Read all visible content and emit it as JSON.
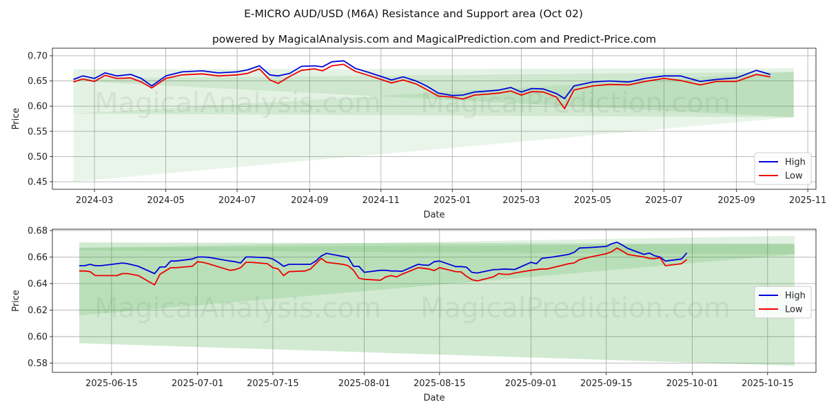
{
  "page": {
    "title": "E-MICRO AUD/USD (M6A) Resistance and Support area (Oct 02)",
    "subtitle": "powered by MagicalAnalysis.com and MagicalPrediction.com and Predict-Price.com",
    "watermarks": [
      "MagicalAnalysis.com",
      "MagicalPrediction.com"
    ]
  },
  "colors": {
    "high": "#0000dd",
    "low": "#ee0000",
    "band": "#2e9e2e"
  },
  "chart_data": [
    {
      "type": "line",
      "title": "",
      "xlabel": "Date",
      "ylabel": "Price",
      "legend": {
        "placement": "lower-right",
        "labels": [
          "High",
          "Low"
        ]
      },
      "grid": true,
      "x_domain": [
        "2024-01-25",
        "2025-11-08"
      ],
      "ylim": [
        0.435,
        0.715
      ],
      "xticks": [
        "2024-03-01",
        "2024-05-01",
        "2024-07-01",
        "2024-09-01",
        "2024-11-01",
        "2025-01-01",
        "2025-03-01",
        "2025-05-01",
        "2025-07-01",
        "2025-09-01",
        "2025-11-01"
      ],
      "xtick_labels": [
        "2024-03",
        "2024-05",
        "2024-07",
        "2024-09",
        "2024-11",
        "2025-01",
        "2025-03",
        "2025-05",
        "2025-07",
        "2025-09",
        "2025-11"
      ],
      "yticks": [
        0.45,
        0.5,
        0.55,
        0.6,
        0.65,
        0.7
      ],
      "ytick_labels": [
        "0.45",
        "0.50",
        "0.55",
        "0.60",
        "0.65",
        "0.70"
      ],
      "bands": [
        {
          "x": [
            "2024-02-12",
            "2025-10-20"
          ],
          "upper": [
            0.673,
            0.675
          ],
          "lower": [
            0.585,
            0.578
          ],
          "opacity": 0.13
        },
        {
          "x": [
            "2024-02-12",
            "2025-10-20"
          ],
          "upper": [
            0.585,
            0.668
          ],
          "lower": [
            0.45,
            0.578
          ],
          "opacity": 0.1
        },
        {
          "x": [
            "2024-02-12",
            "2025-10-20"
          ],
          "upper": [
            0.655,
            0.668
          ],
          "lower": [
            0.65,
            0.578
          ],
          "opacity": 0.12
        }
      ],
      "series": [
        {
          "name": "High",
          "dates": [
            "2024-02-12",
            "2024-02-20",
            "2024-03-01",
            "2024-03-10",
            "2024-03-20",
            "2024-04-01",
            "2024-04-10",
            "2024-04-19",
            "2024-05-01",
            "2024-05-15",
            "2024-06-01",
            "2024-06-15",
            "2024-07-01",
            "2024-07-10",
            "2024-07-20",
            "2024-07-29",
            "2024-08-05",
            "2024-08-15",
            "2024-08-25",
            "2024-09-05",
            "2024-09-12",
            "2024-09-20",
            "2024-09-30",
            "2024-10-10",
            "2024-10-20",
            "2024-11-01",
            "2024-11-10",
            "2024-11-20",
            "2024-12-01",
            "2024-12-10",
            "2024-12-20",
            "2025-01-01",
            "2025-01-10",
            "2025-01-20",
            "2025-02-01",
            "2025-02-10",
            "2025-02-20",
            "2025-03-01",
            "2025-03-10",
            "2025-03-20",
            "2025-03-31",
            "2025-04-07",
            "2025-04-15",
            "2025-05-01",
            "2025-05-15",
            "2025-06-01",
            "2025-06-15",
            "2025-07-01",
            "2025-07-15",
            "2025-08-01",
            "2025-08-15",
            "2025-09-01",
            "2025-09-18",
            "2025-09-30"
          ],
          "values": [
            0.653,
            0.66,
            0.655,
            0.666,
            0.66,
            0.663,
            0.655,
            0.64,
            0.66,
            0.668,
            0.67,
            0.666,
            0.668,
            0.672,
            0.68,
            0.662,
            0.66,
            0.665,
            0.679,
            0.68,
            0.678,
            0.688,
            0.69,
            0.675,
            0.668,
            0.659,
            0.652,
            0.658,
            0.65,
            0.64,
            0.626,
            0.621,
            0.622,
            0.628,
            0.63,
            0.632,
            0.637,
            0.628,
            0.635,
            0.634,
            0.625,
            0.615,
            0.64,
            0.648,
            0.65,
            0.648,
            0.655,
            0.66,
            0.66,
            0.649,
            0.653,
            0.656,
            0.671,
            0.663
          ]
        },
        {
          "name": "Low",
          "dates": [
            "2024-02-12",
            "2024-02-20",
            "2024-03-01",
            "2024-03-10",
            "2024-03-20",
            "2024-04-01",
            "2024-04-10",
            "2024-04-19",
            "2024-05-01",
            "2024-05-15",
            "2024-06-01",
            "2024-06-15",
            "2024-07-01",
            "2024-07-10",
            "2024-07-20",
            "2024-07-29",
            "2024-08-05",
            "2024-08-15",
            "2024-08-25",
            "2024-09-05",
            "2024-09-12",
            "2024-09-20",
            "2024-09-30",
            "2024-10-10",
            "2024-10-20",
            "2024-11-01",
            "2024-11-10",
            "2024-11-20",
            "2024-12-01",
            "2024-12-10",
            "2024-12-20",
            "2025-01-01",
            "2025-01-10",
            "2025-01-20",
            "2025-02-01",
            "2025-02-10",
            "2025-02-20",
            "2025-03-01",
            "2025-03-10",
            "2025-03-20",
            "2025-03-31",
            "2025-04-07",
            "2025-04-15",
            "2025-05-01",
            "2025-05-15",
            "2025-06-01",
            "2025-06-15",
            "2025-07-01",
            "2025-07-15",
            "2025-08-01",
            "2025-08-15",
            "2025-09-01",
            "2025-09-18",
            "2025-09-30"
          ],
          "values": [
            0.648,
            0.654,
            0.649,
            0.661,
            0.655,
            0.656,
            0.648,
            0.636,
            0.655,
            0.662,
            0.664,
            0.66,
            0.662,
            0.665,
            0.674,
            0.652,
            0.645,
            0.659,
            0.671,
            0.674,
            0.67,
            0.68,
            0.683,
            0.669,
            0.662,
            0.653,
            0.646,
            0.652,
            0.644,
            0.633,
            0.62,
            0.618,
            0.614,
            0.622,
            0.624,
            0.626,
            0.63,
            0.622,
            0.629,
            0.628,
            0.618,
            0.595,
            0.632,
            0.64,
            0.643,
            0.642,
            0.649,
            0.655,
            0.651,
            0.642,
            0.649,
            0.649,
            0.663,
            0.658
          ]
        }
      ]
    },
    {
      "type": "line",
      "title": "",
      "xlabel": "Date",
      "ylabel": "Price",
      "legend": {
        "placement": "center-right",
        "labels": [
          "High",
          "Low"
        ]
      },
      "grid": true,
      "x_domain": [
        "2025-06-04",
        "2025-10-24"
      ],
      "ylim": [
        0.573,
        0.681
      ],
      "xticks": [
        "2025-06-15",
        "2025-07-01",
        "2025-07-15",
        "2025-08-01",
        "2025-08-15",
        "2025-09-01",
        "2025-09-15",
        "2025-10-01",
        "2025-10-15"
      ],
      "xtick_labels": [
        "2025-06-15",
        "2025-07-01",
        "2025-07-15",
        "2025-08-01",
        "2025-08-15",
        "2025-09-01",
        "2025-09-15",
        "2025-10-01",
        "2025-10-15"
      ],
      "yticks": [
        0.58,
        0.6,
        0.62,
        0.64,
        0.66,
        0.68
      ],
      "ytick_labels": [
        "0.58",
        "0.60",
        "0.62",
        "0.64",
        "0.66",
        "0.68"
      ],
      "bands": [
        {
          "x": [
            "2025-06-09",
            "2025-10-20"
          ],
          "upper": [
            0.671,
            0.67
          ],
          "lower": [
            0.595,
            0.578
          ],
          "opacity": 0.22
        },
        {
          "x": [
            "2025-06-09",
            "2025-10-20"
          ],
          "upper": [
            0.667,
            0.676
          ],
          "lower": [
            0.616,
            0.662
          ],
          "opacity": 0.14
        },
        {
          "x": [
            "2025-06-09",
            "2025-10-20"
          ],
          "upper": [
            0.667,
            0.67
          ],
          "lower": [
            0.665,
            0.662
          ],
          "opacity": 0.12
        }
      ],
      "series": [
        {
          "name": "High",
          "dates": [
            "2025-06-09",
            "2025-06-10",
            "2025-06-11",
            "2025-06-12",
            "2025-06-13",
            "2025-06-16",
            "2025-06-17",
            "2025-06-18",
            "2025-06-19",
            "2025-06-20",
            "2025-06-23",
            "2025-06-24",
            "2025-06-25",
            "2025-06-26",
            "2025-06-27",
            "2025-06-30",
            "2025-07-01",
            "2025-07-02",
            "2025-07-03",
            "2025-07-07",
            "2025-07-08",
            "2025-07-09",
            "2025-07-10",
            "2025-07-11",
            "2025-07-14",
            "2025-07-15",
            "2025-07-16",
            "2025-07-17",
            "2025-07-18",
            "2025-07-21",
            "2025-07-22",
            "2025-07-23",
            "2025-07-24",
            "2025-07-25",
            "2025-07-28",
            "2025-07-29",
            "2025-07-30",
            "2025-07-31",
            "2025-08-01",
            "2025-08-04",
            "2025-08-05",
            "2025-08-06",
            "2025-08-07",
            "2025-08-08",
            "2025-08-11",
            "2025-08-12",
            "2025-08-13",
            "2025-08-14",
            "2025-08-15",
            "2025-08-18",
            "2025-08-19",
            "2025-08-20",
            "2025-08-21",
            "2025-08-22",
            "2025-08-25",
            "2025-08-26",
            "2025-08-27",
            "2025-08-28",
            "2025-08-29",
            "2025-09-01",
            "2025-09-02",
            "2025-09-03",
            "2025-09-04",
            "2025-09-05",
            "2025-09-08",
            "2025-09-09",
            "2025-09-10",
            "2025-09-11",
            "2025-09-12",
            "2025-09-15",
            "2025-09-16",
            "2025-09-17",
            "2025-09-18",
            "2025-09-19",
            "2025-09-22",
            "2025-09-23",
            "2025-09-24",
            "2025-09-25",
            "2025-09-26",
            "2025-09-29",
            "2025-09-30"
          ],
          "values": [
            0.6535,
            0.6535,
            0.6545,
            0.6535,
            0.6535,
            0.655,
            0.6555,
            0.655,
            0.654,
            0.653,
            0.6475,
            0.6525,
            0.6525,
            0.657,
            0.657,
            0.6585,
            0.66,
            0.66,
            0.6598,
            0.657,
            0.6565,
            0.6555,
            0.66,
            0.66,
            0.6595,
            0.6585,
            0.656,
            0.653,
            0.6545,
            0.6545,
            0.6545,
            0.657,
            0.6608,
            0.6628,
            0.6605,
            0.6597,
            0.653,
            0.653,
            0.6485,
            0.65,
            0.65,
            0.6495,
            0.6495,
            0.6492,
            0.6545,
            0.654,
            0.6538,
            0.6565,
            0.657,
            0.6528,
            0.6528,
            0.6524,
            0.6485,
            0.648,
            0.6505,
            0.6506,
            0.651,
            0.6508,
            0.6506,
            0.656,
            0.655,
            0.659,
            0.6595,
            0.66,
            0.662,
            0.6635,
            0.6668,
            0.667,
            0.6672,
            0.668,
            0.67,
            0.6712,
            0.669,
            0.6665,
            0.662,
            0.663,
            0.661,
            0.66,
            0.657,
            0.6585,
            0.6632
          ]
        },
        {
          "name": "Low",
          "dates": [
            "2025-06-09",
            "2025-06-10",
            "2025-06-11",
            "2025-06-12",
            "2025-06-13",
            "2025-06-16",
            "2025-06-17",
            "2025-06-18",
            "2025-06-19",
            "2025-06-20",
            "2025-06-23",
            "2025-06-24",
            "2025-06-25",
            "2025-06-26",
            "2025-06-27",
            "2025-06-30",
            "2025-07-01",
            "2025-07-02",
            "2025-07-03",
            "2025-07-07",
            "2025-07-08",
            "2025-07-09",
            "2025-07-10",
            "2025-07-11",
            "2025-07-14",
            "2025-07-15",
            "2025-07-16",
            "2025-07-17",
            "2025-07-18",
            "2025-07-21",
            "2025-07-22",
            "2025-07-23",
            "2025-07-24",
            "2025-07-25",
            "2025-07-28",
            "2025-07-29",
            "2025-07-30",
            "2025-07-31",
            "2025-08-01",
            "2025-08-04",
            "2025-08-05",
            "2025-08-06",
            "2025-08-07",
            "2025-08-08",
            "2025-08-11",
            "2025-08-12",
            "2025-08-13",
            "2025-08-14",
            "2025-08-15",
            "2025-08-18",
            "2025-08-19",
            "2025-08-20",
            "2025-08-21",
            "2025-08-22",
            "2025-08-25",
            "2025-08-26",
            "2025-08-27",
            "2025-08-28",
            "2025-08-29",
            "2025-09-01",
            "2025-09-02",
            "2025-09-03",
            "2025-09-04",
            "2025-09-05",
            "2025-09-08",
            "2025-09-09",
            "2025-09-10",
            "2025-09-11",
            "2025-09-12",
            "2025-09-15",
            "2025-09-16",
            "2025-09-17",
            "2025-09-18",
            "2025-09-19",
            "2025-09-22",
            "2025-09-23",
            "2025-09-24",
            "2025-09-25",
            "2025-09-26",
            "2025-09-29",
            "2025-09-30"
          ],
          "values": [
            0.6495,
            0.6495,
            0.649,
            0.646,
            0.646,
            0.646,
            0.6475,
            0.6475,
            0.6468,
            0.646,
            0.639,
            0.647,
            0.6495,
            0.652,
            0.652,
            0.653,
            0.6565,
            0.656,
            0.655,
            0.65,
            0.6505,
            0.652,
            0.656,
            0.656,
            0.655,
            0.652,
            0.651,
            0.646,
            0.649,
            0.6495,
            0.651,
            0.655,
            0.659,
            0.656,
            0.6545,
            0.6535,
            0.65,
            0.644,
            0.6432,
            0.6425,
            0.645,
            0.646,
            0.645,
            0.647,
            0.652,
            0.6515,
            0.651,
            0.6498,
            0.652,
            0.649,
            0.6488,
            0.6455,
            0.643,
            0.642,
            0.645,
            0.6475,
            0.647,
            0.647,
            0.648,
            0.65,
            0.6505,
            0.651,
            0.651,
            0.652,
            0.655,
            0.6555,
            0.658,
            0.659,
            0.66,
            0.6625,
            0.664,
            0.6668,
            0.6645,
            0.662,
            0.66,
            0.659,
            0.6588,
            0.6595,
            0.6535,
            0.655,
            0.6582
          ]
        }
      ]
    }
  ]
}
